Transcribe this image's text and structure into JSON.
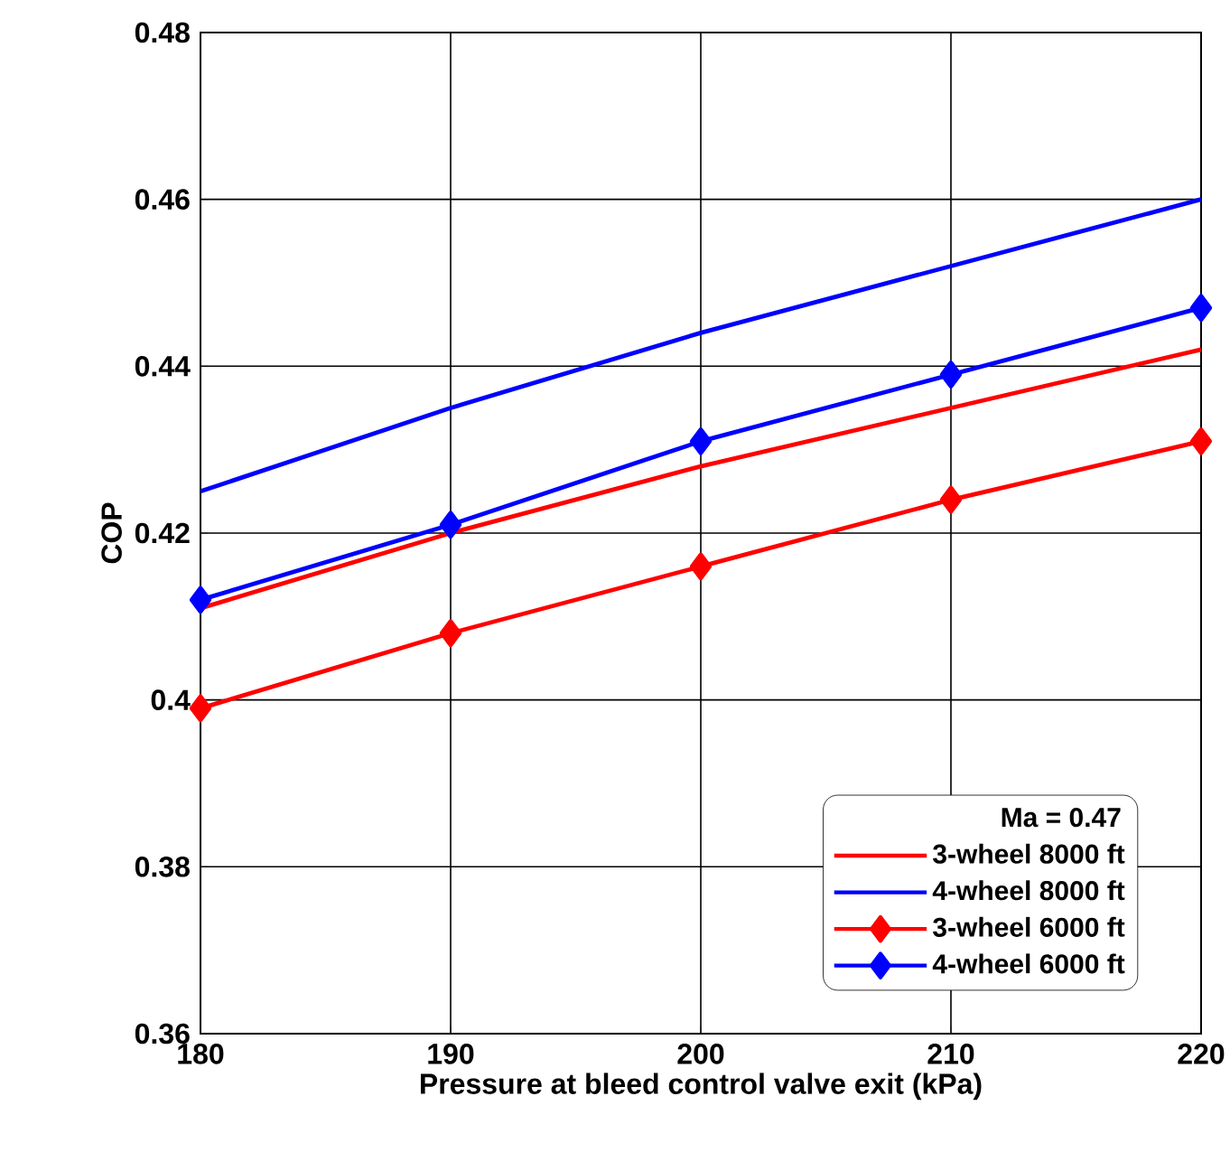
{
  "chart_data": {
    "type": "line",
    "xlabel": "Pressure at bleed control valve exit (kPa)",
    "ylabel": "COP",
    "legend_title": "Ma = 0.47",
    "x": [
      180,
      190,
      200,
      210,
      220
    ],
    "series": [
      {
        "name": "3-wheel 8000 ft",
        "color": "#ff0000",
        "marker": "none",
        "values": [
          0.411,
          0.42,
          0.428,
          0.435,
          0.442
        ]
      },
      {
        "name": "4-wheel 8000 ft",
        "color": "#0000ff",
        "marker": "none",
        "values": [
          0.425,
          0.435,
          0.444,
          0.452,
          0.46
        ]
      },
      {
        "name": "3-wheel 6000 ft",
        "color": "#ff0000",
        "marker": "diamond",
        "values": [
          0.399,
          0.408,
          0.416,
          0.424,
          0.431
        ]
      },
      {
        "name": "4-wheel 6000 ft",
        "color": "#0000ff",
        "marker": "diamond",
        "values": [
          0.412,
          0.421,
          0.431,
          0.439,
          0.447
        ]
      }
    ],
    "xlim": [
      180,
      220
    ],
    "xticks": [
      180,
      190,
      200,
      210,
      220
    ],
    "ylim": [
      0.36,
      0.48
    ],
    "yticks": [
      0.36,
      0.38,
      0.4,
      0.42,
      0.44,
      0.46,
      0.48
    ],
    "grid": true,
    "legend": "bottom right",
    "line_style": "solid"
  }
}
